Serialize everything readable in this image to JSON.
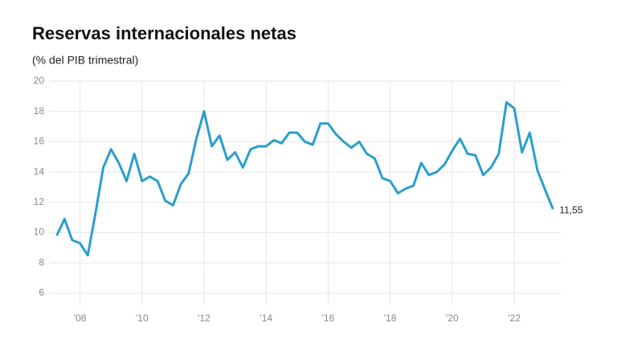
{
  "chart_data": {
    "type": "line",
    "title": "Reservas internacionales netas",
    "subtitle": "(% del PIB trimestral)",
    "x": [
      2007.25,
      2007.5,
      2007.75,
      2008,
      2008.25,
      2008.5,
      2008.75,
      2009,
      2009.25,
      2009.5,
      2009.75,
      2010,
      2010.25,
      2010.5,
      2010.75,
      2011,
      2011.25,
      2011.5,
      2011.75,
      2012,
      2012.25,
      2012.5,
      2012.75,
      2013,
      2013.25,
      2013.5,
      2013.75,
      2014,
      2014.25,
      2014.5,
      2014.75,
      2015,
      2015.25,
      2015.5,
      2015.75,
      2016,
      2016.25,
      2016.5,
      2016.75,
      2017,
      2017.25,
      2017.5,
      2017.75,
      2018,
      2018.25,
      2018.5,
      2018.75,
      2019,
      2019.25,
      2019.5,
      2019.75,
      2020,
      2020.25,
      2020.5,
      2020.75,
      2021,
      2021.25,
      2021.5,
      2021.75,
      2022,
      2022.25,
      2022.5,
      2022.75,
      2023,
      2023.25
    ],
    "series": [
      {
        "name": "Reservas internacionales netas",
        "color": "#2a9fcb",
        "values": [
          9.8,
          10.9,
          9.5,
          9.3,
          8.5,
          11.3,
          14.3,
          15.5,
          14.6,
          13.4,
          15.2,
          13.4,
          13.7,
          13.4,
          12.1,
          11.8,
          13.2,
          13.9,
          16.2,
          18.0,
          15.7,
          16.4,
          14.8,
          15.3,
          14.3,
          15.5,
          15.7,
          15.7,
          16.1,
          15.9,
          16.6,
          16.6,
          16.0,
          15.8,
          17.2,
          17.2,
          16.5,
          16.0,
          15.6,
          16.0,
          15.2,
          14.9,
          13.6,
          13.4,
          12.6,
          12.9,
          13.1,
          14.6,
          13.8,
          14.0,
          14.5,
          15.4,
          16.2,
          15.2,
          15.1,
          13.8,
          14.3,
          15.2,
          18.6,
          18.2,
          15.3,
          16.6,
          14.1,
          12.8,
          11.55
        ],
        "value_labels": [
          null,
          null,
          null,
          null,
          null,
          null,
          null,
          null,
          null,
          null,
          null,
          null,
          null,
          null,
          null,
          null,
          null,
          null,
          null,
          null,
          null,
          null,
          null,
          null,
          null,
          null,
          null,
          null,
          null,
          null,
          null,
          null,
          null,
          null,
          null,
          null,
          null,
          null,
          null,
          null,
          null,
          null,
          null,
          null,
          null,
          null,
          null,
          null,
          null,
          null,
          null,
          null,
          null,
          null,
          null,
          null,
          null,
          null,
          null,
          null,
          null,
          null,
          null,
          null,
          "11,55"
        ]
      }
    ],
    "xlim": [
      2007,
      2023.5
    ],
    "xticks": [
      {
        "value": 2008,
        "label": "'08"
      },
      {
        "value": 2010,
        "label": "'10"
      },
      {
        "value": 2012,
        "label": "'12"
      },
      {
        "value": 2014,
        "label": "'14"
      },
      {
        "value": 2016,
        "label": "'16"
      },
      {
        "value": 2018,
        "label": "'18"
      },
      {
        "value": 2020,
        "label": "'20"
      },
      {
        "value": 2022,
        "label": "'22"
      }
    ],
    "ylim": [
      6,
      20
    ],
    "yticks": [
      6,
      8,
      10,
      12,
      14,
      16,
      18,
      20
    ],
    "grid": true
  }
}
